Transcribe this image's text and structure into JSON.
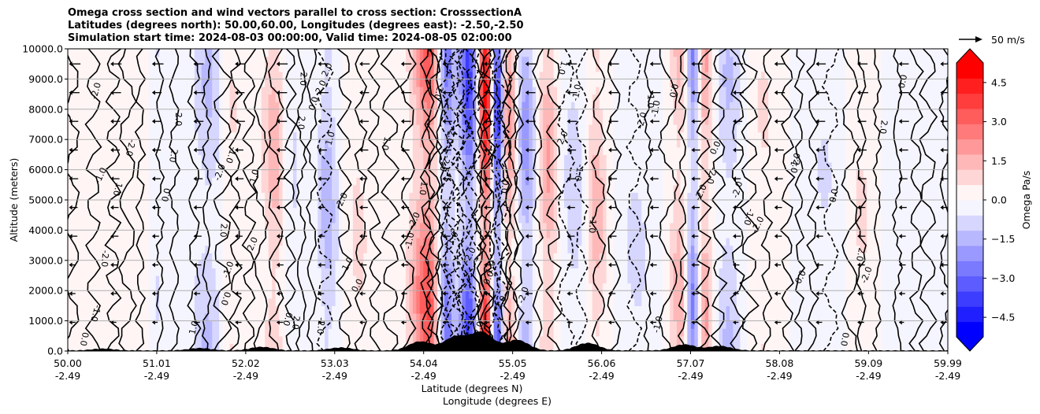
{
  "chart_data": {
    "type": "heatmap",
    "title_lines": [
      "Omega cross section and wind vectors parallel to cross section: CrosssectionA",
      "Latitudes (degrees north): 50.00,60.00, Longitudes (degrees east): -2.50,-2.50",
      "Simulation start time: 2024-08-03 00:00:00, Valid time: 2024-08-05 02:00:00"
    ],
    "ylabel": "Altitude (meters)",
    "xlabel_lat": "Latitude (degrees N)",
    "xlabel_lon": "Longitude (degrees E)",
    "x_range": [
      50.0,
      59.99
    ],
    "ylim": [
      0,
      10000
    ],
    "grid": "horizontal",
    "y_ticks": [
      0,
      1000,
      2000,
      3000,
      4000,
      5000,
      6000,
      7000,
      8000,
      9000,
      10000
    ],
    "y_tick_labels": [
      "0.0",
      "1000.0",
      "2000.0",
      "3000.0",
      "4000.0",
      "5000.0",
      "6000.0",
      "7000.0",
      "8000.0",
      "9000.0",
      "10000.0"
    ],
    "x_ticks": [
      {
        "lat": "50.00",
        "lon": "-2.49"
      },
      {
        "lat": "51.01",
        "lon": "-2.49"
      },
      {
        "lat": "52.02",
        "lon": "-2.49"
      },
      {
        "lat": "53.03",
        "lon": "-2.49"
      },
      {
        "lat": "54.04",
        "lon": "-2.49"
      },
      {
        "lat": "55.05",
        "lon": "-2.49"
      },
      {
        "lat": "56.06",
        "lon": "-2.49"
      },
      {
        "lat": "57.07",
        "lon": "-2.49"
      },
      {
        "lat": "58.08",
        "lon": "-2.49"
      },
      {
        "lat": "59.09",
        "lon": "-2.49"
      },
      {
        "lat": "59.99",
        "lon": "-2.49"
      }
    ],
    "colorbar": {
      "label": "Omega Pa/s",
      "range": [
        -5.25,
        5.25
      ],
      "ticks": [
        -4.5,
        -3.0,
        -1.5,
        0.0,
        1.5,
        3.0,
        4.5
      ],
      "tick_labels": [
        "−4.5",
        "−3.0",
        "−1.5",
        "0.0",
        "1.5",
        "3.0",
        "4.5"
      ],
      "extend": "both",
      "colors_low_to_high": [
        "#0000ff",
        "#1f1fff",
        "#3d3dff",
        "#5c5cff",
        "#7a7aff",
        "#9999ff",
        "#b8b8ff",
        "#d6d6ff",
        "#f5f5ff",
        "#fff5f5",
        "#ffd6d6",
        "#ffb8b8",
        "#ff9999",
        "#ff7a7a",
        "#ff5c5c",
        "#ff3d3d",
        "#ff1f1f",
        "#ff0000"
      ]
    },
    "vector_key": {
      "label": "50 m/s"
    },
    "contour_labels": [
      "0.0",
      "1.0",
      "-1.0",
      "2.0",
      "-2.0"
    ],
    "omega_bands": [
      {
        "lat": 50.15,
        "w": 0.35,
        "value": 0.2
      },
      {
        "lat": 50.9,
        "w": 0.15,
        "value": 0.6
      },
      {
        "lat": 51.0,
        "w": 0.12,
        "value": -0.9
      },
      {
        "lat": 51.6,
        "w": 0.2,
        "value": -1.2
      },
      {
        "lat": 51.85,
        "w": 0.12,
        "value": 0.8
      },
      {
        "lat": 52.35,
        "w": 0.15,
        "value": 1.5
      },
      {
        "lat": 52.55,
        "w": 0.12,
        "value": -0.8
      },
      {
        "lat": 52.95,
        "w": 0.12,
        "value": -1.5
      },
      {
        "lat": 53.3,
        "w": 0.15,
        "value": 0.7
      },
      {
        "lat": 53.95,
        "w": 0.12,
        "value": 1.2
      },
      {
        "lat": 54.1,
        "w": 0.12,
        "value": 3.0
      },
      {
        "lat": 54.3,
        "w": 0.1,
        "value": -2.5
      },
      {
        "lat": 54.55,
        "w": 0.1,
        "value": -3.5
      },
      {
        "lat": 54.75,
        "w": 0.08,
        "value": 5.0
      },
      {
        "lat": 54.88,
        "w": 0.08,
        "value": -4.5
      },
      {
        "lat": 55.0,
        "w": 0.1,
        "value": 2.5
      },
      {
        "lat": 55.2,
        "w": 0.12,
        "value": -2.0
      },
      {
        "lat": 55.45,
        "w": 0.12,
        "value": 1.8
      },
      {
        "lat": 55.75,
        "w": 0.15,
        "value": -1.0
      },
      {
        "lat": 56.0,
        "w": 0.12,
        "value": 1.5
      },
      {
        "lat": 56.45,
        "w": 0.2,
        "value": -0.7
      },
      {
        "lat": 56.95,
        "w": 0.12,
        "value": 1.5
      },
      {
        "lat": 57.1,
        "w": 0.08,
        "value": -3.0
      },
      {
        "lat": 57.22,
        "w": 0.1,
        "value": 2.0
      },
      {
        "lat": 57.5,
        "w": 0.15,
        "value": -1.2
      },
      {
        "lat": 57.9,
        "w": 0.2,
        "value": 0.6
      },
      {
        "lat": 58.6,
        "w": 0.25,
        "value": -0.6
      },
      {
        "lat": 59.0,
        "w": 0.2,
        "value": 0.7
      },
      {
        "lat": 59.5,
        "w": 0.3,
        "value": -0.4
      }
    ],
    "terrain_peaks": [
      {
        "lat": 50.4,
        "height": 60
      },
      {
        "lat": 51.5,
        "height": 80
      },
      {
        "lat": 52.2,
        "height": 120
      },
      {
        "lat": 53.1,
        "height": 100
      },
      {
        "lat": 54.0,
        "height": 300
      },
      {
        "lat": 54.4,
        "height": 450
      },
      {
        "lat": 54.7,
        "height": 600
      },
      {
        "lat": 55.1,
        "height": 350
      },
      {
        "lat": 55.9,
        "height": 250
      },
      {
        "lat": 57.0,
        "height": 200
      },
      {
        "lat": 57.4,
        "height": 150
      }
    ]
  }
}
